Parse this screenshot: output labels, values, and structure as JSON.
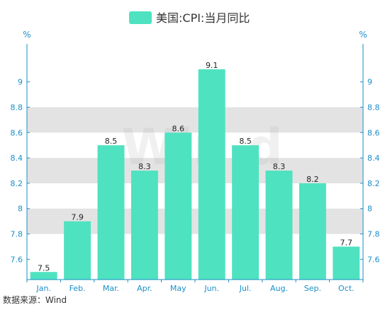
{
  "chart_data": {
    "type": "bar",
    "categories": [
      "Jan.",
      "Feb.",
      "Mar.",
      "Apr.",
      "May",
      "Jun.",
      "Jul.",
      "Aug.",
      "Sep.",
      "Oct."
    ],
    "series": [
      {
        "name": "美国:CPI:当月同比",
        "values": [
          7.5,
          7.9,
          8.5,
          8.3,
          8.6,
          9.1,
          8.5,
          8.3,
          8.2,
          7.7
        ]
      }
    ],
    "data_labels": [
      "7.5",
      "7.9",
      "8.5",
      "8.3",
      "8.6",
      "9.1",
      "8.5",
      "8.3",
      "8.2",
      "7.7"
    ],
    "y_ticks": [
      7.6,
      7.8,
      8,
      8.2,
      8.4,
      8.6,
      8.8,
      9
    ],
    "y_tick_labels": [
      "7.6",
      "7.8",
      "8",
      "8.2",
      "8.4",
      "8.6",
      "8.8",
      "9"
    ],
    "ylim": [
      7.44,
      9.3
    ],
    "left_unit": "%",
    "right_unit": "%",
    "legend_position": "top-center",
    "grid": "alternating horizontal bands",
    "colors": {
      "bar": "#4fe2c0",
      "band": "#e3e3e3",
      "axis": "#1a8fc9"
    }
  },
  "watermark": "Win.d",
  "source": "数据来源：Wind"
}
